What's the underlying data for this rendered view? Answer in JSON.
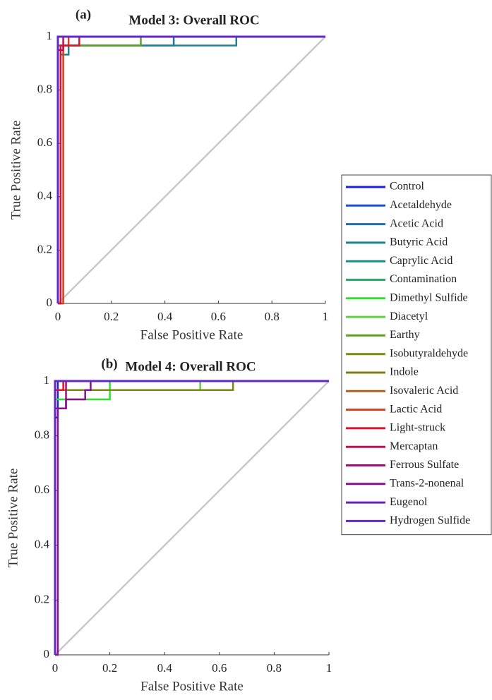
{
  "chart_data": [
    {
      "type": "line",
      "panel_label": "(a)",
      "title": "Model 3: Overall ROC",
      "xlabel": "False Positive Rate",
      "ylabel": "True Positive Rate",
      "xlim": [
        0,
        1
      ],
      "ylim": [
        0,
        1
      ],
      "xticks": [
        0,
        0.2,
        0.4,
        0.6,
        0.8,
        1
      ],
      "yticks": [
        0,
        0.2,
        0.4,
        0.6,
        0.8,
        1
      ],
      "legend": "outside right",
      "series": [
        {
          "name": "Control",
          "color": "#1f1fe0",
          "x": [
            0,
            0,
            1
          ],
          "values": [
            0,
            1,
            1
          ]
        },
        {
          "name": "Acetaldehyde",
          "color": "#1a4fd0",
          "x": [
            0,
            0,
            1
          ],
          "values": [
            0,
            1,
            1
          ]
        },
        {
          "name": "Acetic Acid",
          "color": "#1f6fa8",
          "x": [
            0,
            0,
            0.433,
            0.433,
            1
          ],
          "values": [
            0,
            0.967,
            0.967,
            1,
            1
          ]
        },
        {
          "name": "Butyric Acid",
          "color": "#1f8090",
          "x": [
            0,
            0.01,
            0.01,
            0.04,
            0.04,
            0.667,
            0.667,
            1
          ],
          "values": [
            0,
            0,
            0.933,
            0.933,
            0.967,
            0.967,
            1,
            1
          ]
        },
        {
          "name": "Caprylic Acid",
          "color": "#1a9080",
          "x": [
            0,
            0,
            1
          ],
          "values": [
            0,
            1,
            1
          ]
        },
        {
          "name": "Contamination",
          "color": "#20b060",
          "x": [
            0,
            0,
            1
          ],
          "values": [
            0,
            1,
            1
          ]
        },
        {
          "name": "Dimethyl Sulfide",
          "color": "#30e030",
          "x": [
            0,
            0,
            1
          ],
          "values": [
            0,
            1,
            1
          ]
        },
        {
          "name": "Diacetyl",
          "color": "#60d040",
          "x": [
            0,
            0,
            1
          ],
          "values": [
            0,
            1,
            1
          ]
        },
        {
          "name": "Earthy",
          "color": "#60a020",
          "x": [
            0,
            0,
            0.31,
            0.31,
            1
          ],
          "values": [
            0,
            0.967,
            0.967,
            1,
            1
          ]
        },
        {
          "name": "Isobutyraldehyde",
          "color": "#7a8a10",
          "x": [
            0,
            0,
            1
          ],
          "values": [
            0,
            1,
            1
          ]
        },
        {
          "name": "Indole",
          "color": "#8a7a10",
          "x": [
            0,
            0,
            1
          ],
          "values": [
            0,
            1,
            1
          ]
        },
        {
          "name": "Isovaleric Acid",
          "color": "#b06020",
          "x": [
            0,
            0,
            1
          ],
          "values": [
            0,
            1,
            1
          ]
        },
        {
          "name": "Lactic Acid",
          "color": "#d04020",
          "x": [
            0,
            0.02,
            0.02,
            0.04,
            0.04,
            1
          ],
          "values": [
            0,
            0,
            0.967,
            0.967,
            1,
            1
          ]
        },
        {
          "name": "Light-struck",
          "color": "#e01030",
          "x": [
            0,
            0.01,
            0.01,
            0.08,
            0.08,
            1
          ],
          "values": [
            0,
            0,
            0.967,
            0.967,
            1,
            1
          ]
        },
        {
          "name": "Mercaptan",
          "color": "#c01050",
          "x": [
            0,
            0,
            0.02,
            0.02,
            1
          ],
          "values": [
            0,
            0.95,
            0.95,
            1,
            1
          ]
        },
        {
          "name": "Ferrous Sulfate",
          "color": "#a01070",
          "x": [
            0,
            0,
            1
          ],
          "values": [
            0,
            1,
            1
          ]
        },
        {
          "name": "Trans-2-nonenal",
          "color": "#8a1090",
          "x": [
            0,
            0,
            1
          ],
          "values": [
            0,
            1,
            1
          ]
        },
        {
          "name": "Eugenol",
          "color": "#6a20b0",
          "x": [
            0,
            0,
            1
          ],
          "values": [
            0,
            1,
            1
          ]
        },
        {
          "name": "Hydrogen Sulfide",
          "color": "#5a2ad0",
          "x": [
            0,
            0,
            1
          ],
          "values": [
            0,
            1,
            1
          ]
        }
      ]
    },
    {
      "type": "line",
      "panel_label": "(b)",
      "title": "Model 4: Overall ROC",
      "xlabel": "False Positive Rate",
      "ylabel": "True Positive Rate",
      "xlim": [
        0,
        1
      ],
      "ylim": [
        0,
        1
      ],
      "xticks": [
        0,
        0.2,
        0.4,
        0.6,
        0.8,
        1
      ],
      "yticks": [
        0,
        0.2,
        0.4,
        0.6,
        0.8,
        1
      ],
      "series": [
        {
          "color": "#1f1fe0",
          "x": [
            0,
            0,
            0.01,
            0.01,
            1
          ],
          "values": [
            0,
            0.867,
            0.867,
            1,
            1
          ]
        },
        {
          "color": "#1a4fd0",
          "x": [
            0,
            0,
            1
          ],
          "values": [
            0,
            1,
            1
          ]
        },
        {
          "color": "#1f6fa8",
          "x": [
            0,
            0,
            1
          ],
          "values": [
            0,
            1,
            1
          ]
        },
        {
          "color": "#1f8090",
          "x": [
            0,
            0,
            1
          ],
          "values": [
            0,
            1,
            1
          ]
        },
        {
          "color": "#1a9080",
          "x": [
            0,
            0,
            1
          ],
          "values": [
            0,
            1,
            1
          ]
        },
        {
          "color": "#20b060",
          "x": [
            0,
            0,
            1
          ],
          "values": [
            0,
            1,
            1
          ]
        },
        {
          "color": "#30e030",
          "x": [
            0,
            0,
            0.2,
            0.2,
            1
          ],
          "values": [
            0,
            0.933,
            0.933,
            1,
            1
          ]
        },
        {
          "color": "#60d040",
          "x": [
            0,
            0,
            0.53,
            0.53,
            1
          ],
          "values": [
            0,
            0.967,
            0.967,
            1,
            1
          ]
        },
        {
          "color": "#60a020",
          "x": [
            0,
            0,
            1
          ],
          "values": [
            0,
            1,
            1
          ]
        },
        {
          "color": "#7a8a10",
          "x": [
            0,
            0,
            0.65,
            0.65,
            1
          ],
          "values": [
            0,
            0.967,
            0.967,
            1,
            1
          ]
        },
        {
          "color": "#8a7a10",
          "x": [
            0,
            0,
            1
          ],
          "values": [
            0,
            1,
            1
          ]
        },
        {
          "color": "#b06020",
          "x": [
            0,
            0,
            1
          ],
          "values": [
            0,
            1,
            1
          ]
        },
        {
          "color": "#d04020",
          "x": [
            0,
            0,
            1
          ],
          "values": [
            0,
            1,
            1
          ]
        },
        {
          "color": "#e01030",
          "x": [
            0,
            0,
            0.03,
            0.03,
            1
          ],
          "values": [
            0,
            0.967,
            0.967,
            1,
            1
          ]
        },
        {
          "color": "#c01050",
          "x": [
            0,
            0,
            1
          ],
          "values": [
            0,
            1,
            1
          ]
        },
        {
          "color": "#a01070",
          "x": [
            0,
            0,
            0.04,
            0.04,
            1
          ],
          "values": [
            0,
            0.9,
            0.9,
            1,
            1
          ]
        },
        {
          "color": "#8a1090",
          "x": [
            0,
            0.01,
            0.01,
            0.04,
            0.04,
            0.11,
            0.11,
            0.13,
            0.13,
            1
          ],
          "values": [
            0,
            0,
            0.9,
            0.9,
            0.933,
            0.933,
            0.967,
            0.967,
            1,
            1
          ]
        },
        {
          "color": "#6a20b0",
          "x": [
            0,
            0,
            1
          ],
          "values": [
            0,
            1,
            1
          ]
        },
        {
          "color": "#5a2ad0",
          "x": [
            0,
            0,
            1
          ],
          "values": [
            0,
            1,
            1
          ]
        }
      ]
    }
  ]
}
